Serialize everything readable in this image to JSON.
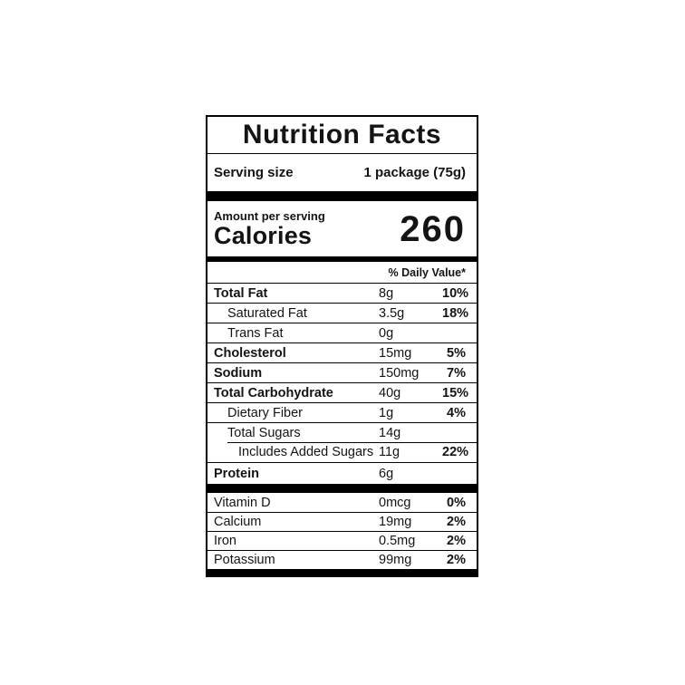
{
  "label": {
    "title": "Nutrition Facts",
    "serving": {
      "label": "Serving size",
      "value": "1 package (75g)"
    },
    "calories": {
      "heading": "Amount per serving",
      "label": "Calories",
      "value": "260"
    },
    "daily_value_header": "% Daily Value*",
    "rows": [
      {
        "name": "Total Fat",
        "amount": "8g",
        "dv": "10%"
      },
      {
        "name": "Saturated Fat",
        "amount": "3.5g",
        "dv": "18%"
      },
      {
        "name": "Trans Fat",
        "amount": "0g",
        "dv": ""
      },
      {
        "name": "Cholesterol",
        "amount": "15mg",
        "dv": "5%"
      },
      {
        "name": "Sodium",
        "amount": "150mg",
        "dv": "7%"
      },
      {
        "name": "Total Carbohydrate",
        "amount": "40g",
        "dv": "15%"
      },
      {
        "name": "Dietary Fiber",
        "amount": "1g",
        "dv": "4%"
      },
      {
        "name": "Total Sugars",
        "amount": "14g",
        "dv": ""
      },
      {
        "name": "Includes Added Sugars",
        "amount": "11g",
        "dv": "22%"
      },
      {
        "name": "Protein",
        "amount": "6g",
        "dv": ""
      }
    ],
    "micronutrients": [
      {
        "name": "Vitamin D",
        "amount": "0mcg",
        "dv": "0%"
      },
      {
        "name": "Calcium",
        "amount": "19mg",
        "dv": "2%"
      },
      {
        "name": "Iron",
        "amount": "0.5mg",
        "dv": "2%"
      },
      {
        "name": "Potassium",
        "amount": "99mg",
        "dv": "2%"
      }
    ],
    "colors": {
      "text": "#141414",
      "border": "#000000",
      "background": "#ffffff"
    }
  }
}
